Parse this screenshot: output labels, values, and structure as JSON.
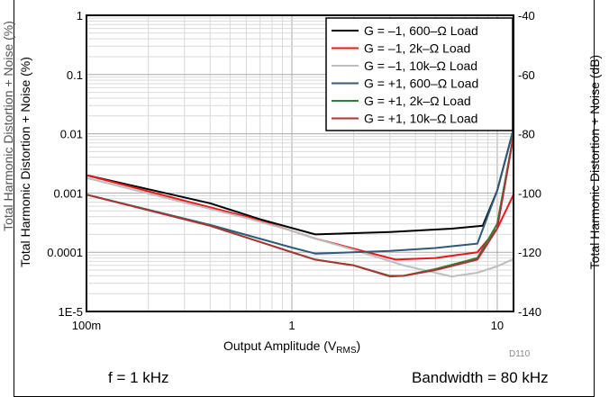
{
  "chart_data": {
    "type": "line",
    "clipped_left_label": "Total Harmonic Distortion + Noise (%)",
    "ylabel": "Total Harmonic Distortion + Noise (%)",
    "y2label": "Total Harmonic Distortion + Noise (dB)",
    "xlabel": "Output Amplitude (V",
    "xlabel_sub": "RMS",
    "xlabel_end": ")",
    "figure_code": "D110",
    "notes": [
      "f = 1 kHz",
      "Bandwidth = 80 kHz"
    ],
    "x_scale": "log",
    "y_scale": "log",
    "xlim": [
      0.1,
      12
    ],
    "ylim": [
      1e-05,
      1
    ],
    "y2lim": [
      -140,
      -40
    ],
    "grid": true,
    "legend_position": "top-right",
    "x_ticks": [
      {
        "value": 0.1,
        "label": "100m"
      },
      {
        "value": 1,
        "label": "1"
      },
      {
        "value": 10,
        "label": "10"
      }
    ],
    "y_ticks": [
      {
        "value": 1,
        "label": "1"
      },
      {
        "value": 0.1,
        "label": "0.1"
      },
      {
        "value": 0.01,
        "label": "0.01"
      },
      {
        "value": 0.001,
        "label": "0.001"
      },
      {
        "value": 0.0001,
        "label": "0.0001"
      },
      {
        "value": 1e-05,
        "label": "1E-5"
      }
    ],
    "y2_ticks": [
      {
        "value": -40,
        "label": "-40"
      },
      {
        "value": -60,
        "label": "-60"
      },
      {
        "value": -80,
        "label": "-80"
      },
      {
        "value": -100,
        "label": "-100"
      },
      {
        "value": -120,
        "label": "-120"
      },
      {
        "value": -140,
        "label": "-140"
      }
    ],
    "series": [
      {
        "name": "G = –1, 600–Ω Load",
        "color": "#000000",
        "x": [
          0.1,
          0.4,
          0.7,
          1.3,
          3,
          6,
          8.5,
          10,
          12
        ],
        "y": [
          0.002,
          0.00067,
          0.00036,
          0.0002,
          0.00022,
          0.00025,
          0.00028,
          0.0011,
          0.012
        ]
      },
      {
        "name": "G = –1, 2k–Ω Load",
        "color": "#e8191b",
        "x": [
          0.1,
          0.3,
          0.6,
          1,
          1.3,
          2,
          3.2,
          5,
          8,
          10,
          12
        ],
        "y": [
          0.002,
          0.00074,
          0.0004,
          0.00023,
          0.00017,
          0.000115,
          7.5e-05,
          8e-05,
          0.0001,
          0.00025,
          0.00094
        ]
      },
      {
        "name": "G = –1, 10k–Ω Load",
        "color": "#bdbdbd",
        "x": [
          0.1,
          0.3,
          0.6,
          1,
          1.3,
          2,
          3.5,
          6,
          8,
          10,
          12
        ],
        "y": [
          0.0018,
          0.00069,
          0.00038,
          0.00023,
          0.00017,
          0.00011,
          6e-05,
          3.9e-05,
          4.5e-05,
          5.8e-05,
          7.7e-05
        ]
      },
      {
        "name": "G = +1, 600–Ω Load",
        "color": "#2f5a78",
        "x": [
          0.1,
          0.4,
          1,
          1.3,
          3,
          5,
          8,
          10,
          12
        ],
        "y": [
          0.00094,
          0.00029,
          0.00012,
          9.5e-05,
          0.000105,
          0.000118,
          0.00014,
          0.0011,
          0.012
        ]
      },
      {
        "name": "G = +1, 2k–Ω Load",
        "color": "#2f7f3a",
        "x": [
          0.1,
          0.4,
          1,
          1.3,
          2,
          3,
          3.5,
          5,
          8,
          10,
          12
        ],
        "y": [
          0.00094,
          0.00028,
          0.0001,
          7.5e-05,
          6e-05,
          4e-05,
          4e-05,
          5.2e-05,
          8e-05,
          0.0003,
          0.0095
        ]
      },
      {
        "name": "G = +1, 10k–Ω Load",
        "color": "#a83636",
        "x": [
          0.1,
          0.4,
          1,
          1.3,
          2,
          3,
          3.5,
          5,
          8,
          10,
          12
        ],
        "y": [
          0.00094,
          0.00028,
          0.0001,
          7.5e-05,
          6e-05,
          3.9e-05,
          4e-05,
          5e-05,
          7.5e-05,
          0.00025,
          0.009
        ]
      }
    ]
  }
}
